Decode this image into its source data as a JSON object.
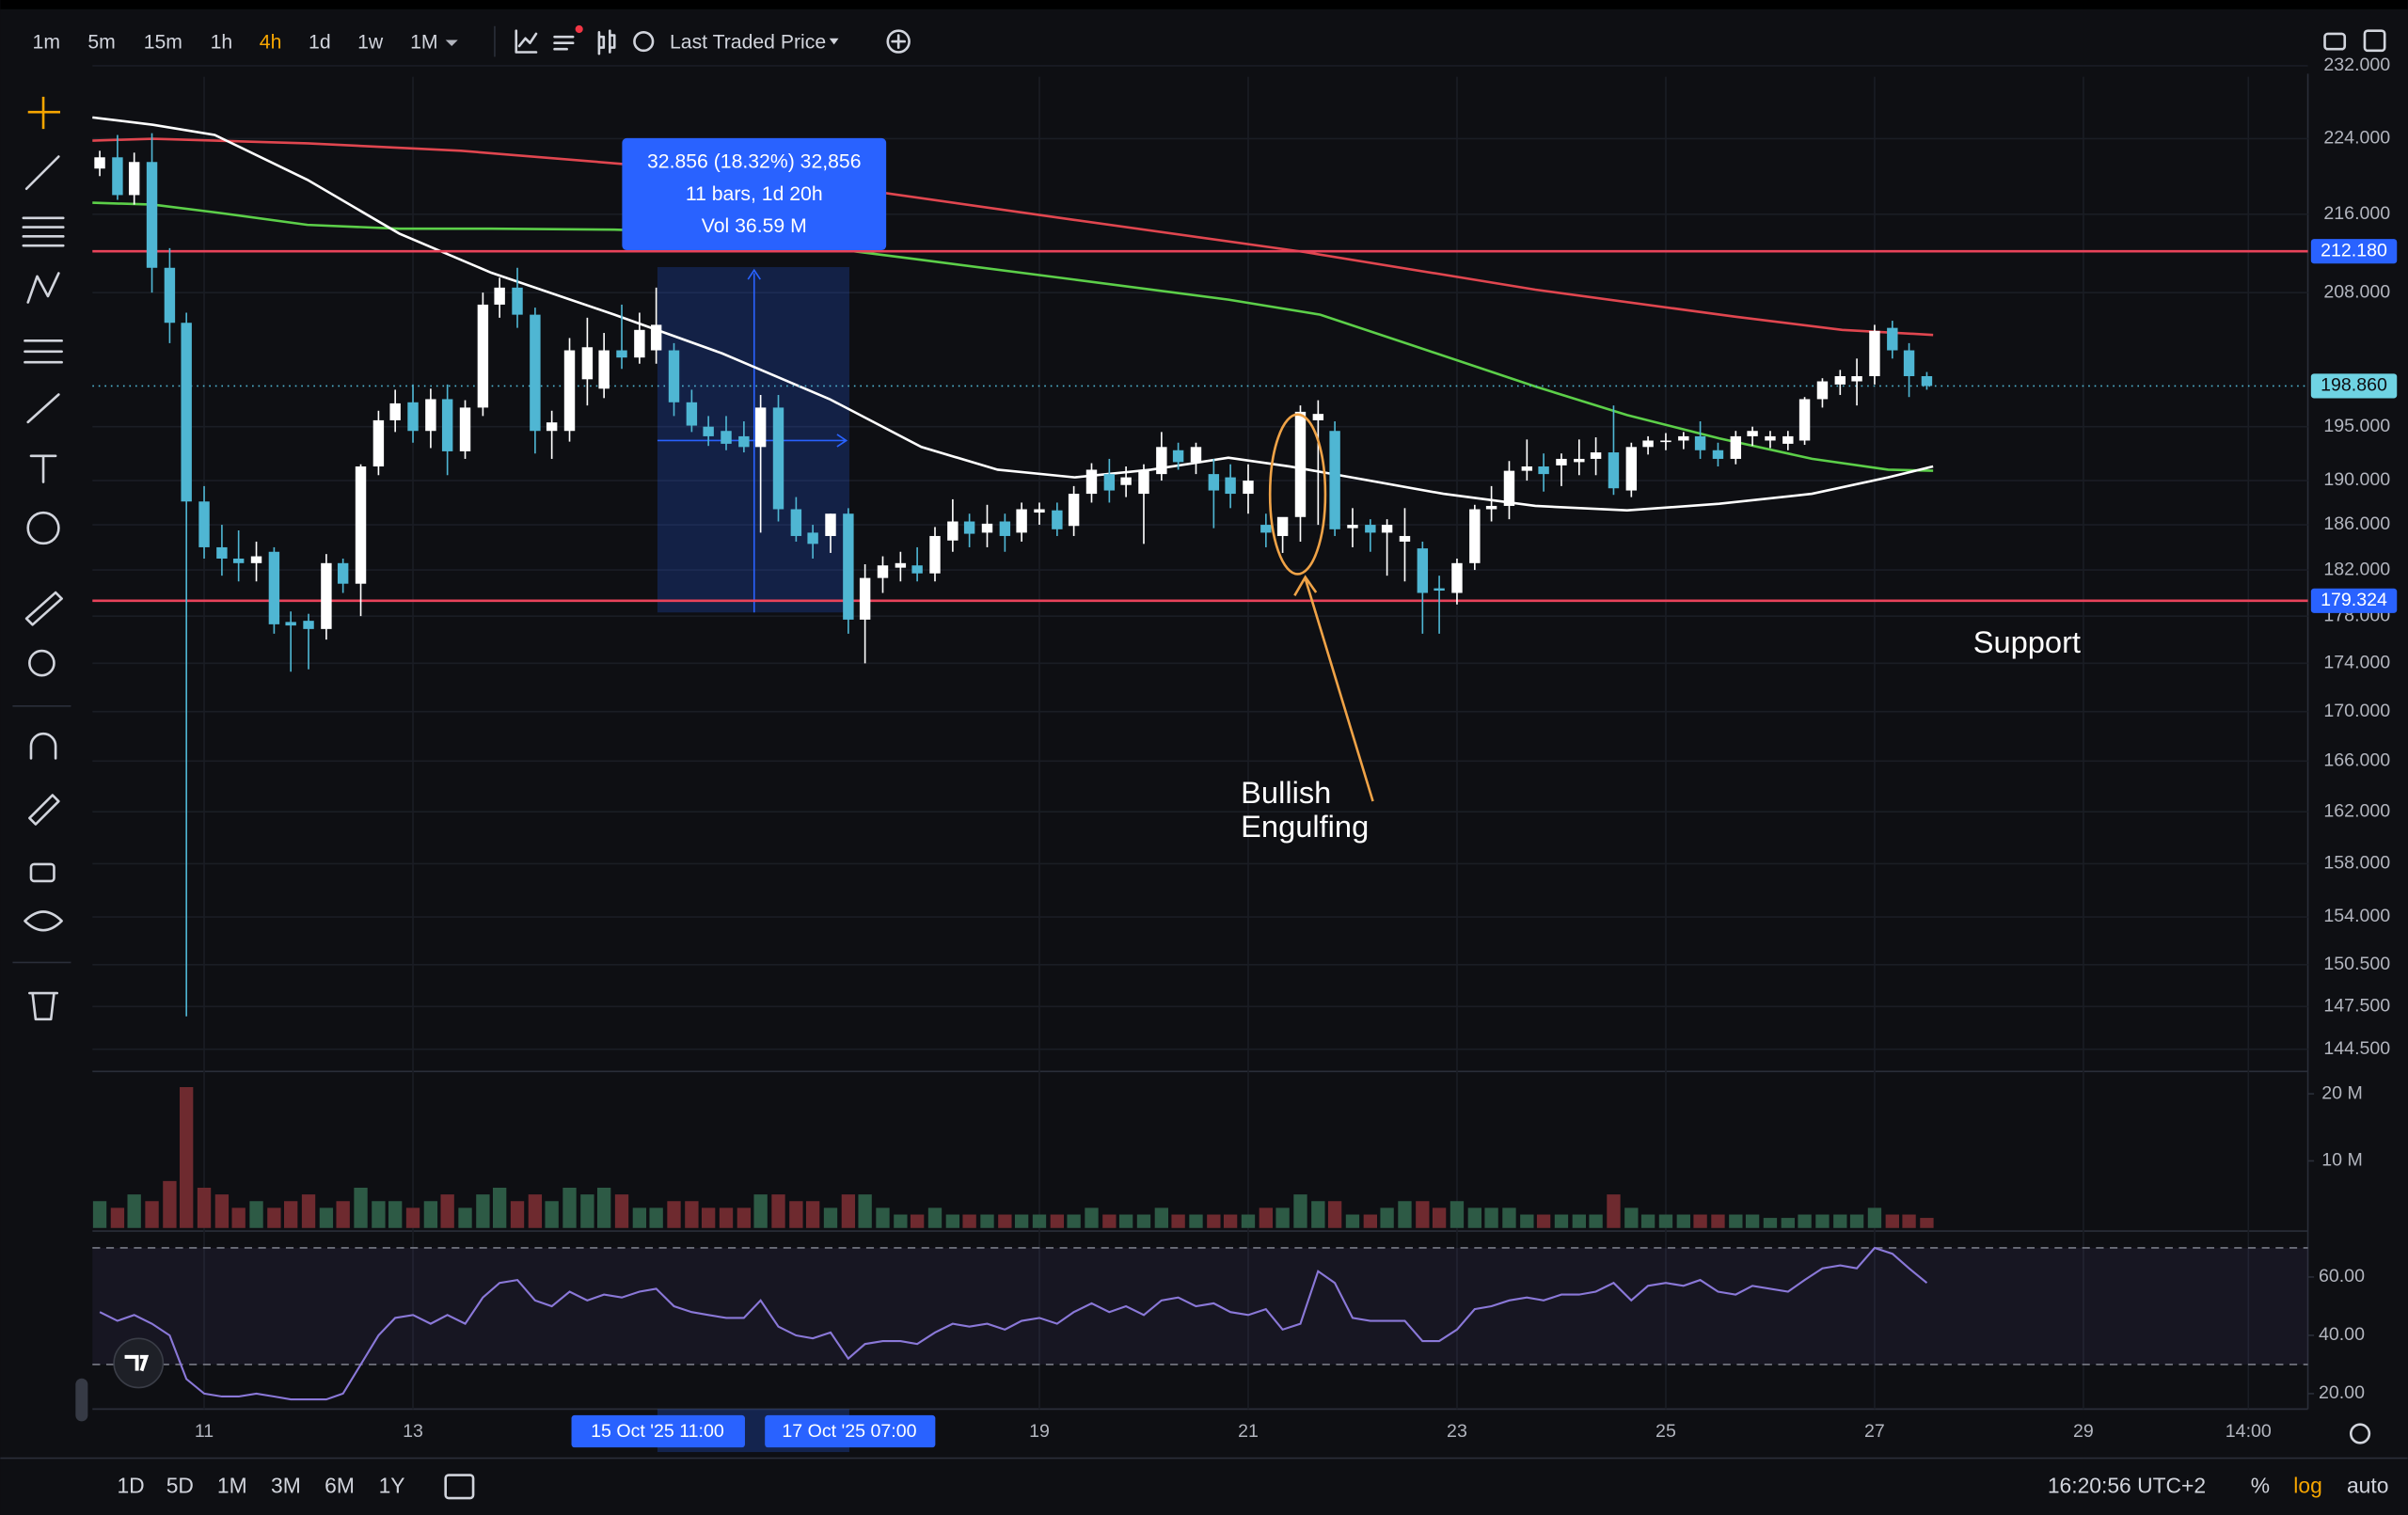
{
  "toolbar": {
    "timeframes": [
      "1m",
      "5m",
      "15m",
      "1h",
      "4h",
      "1d",
      "1w",
      "1M"
    ],
    "active_timeframe": "4h",
    "price_source": "Last Traded Price"
  },
  "chart_data": {
    "type": "candlestick",
    "log_scale": true,
    "grid": true,
    "up_color": "#ffffff",
    "down_color": "#4fb6d3",
    "xlim": [
      9.93,
      31.15
    ],
    "xticks": [
      11,
      13,
      19,
      21,
      23,
      25,
      27,
      29,
      {
        "value": 30.58,
        "label": "14:00"
      }
    ],
    "ylim": [
      143.07,
      230.78
    ],
    "yticks": [
      {
        "value": 232,
        "label": "232.000"
      },
      {
        "value": 224,
        "label": "224.000"
      },
      {
        "value": 216,
        "label": "216.000"
      },
      {
        "value": 208,
        "label": "208.000"
      },
      {
        "value": 195,
        "label": "195.000"
      },
      {
        "value": 190,
        "label": "190.000"
      },
      {
        "value": 186,
        "label": "186.000"
      },
      {
        "value": 182,
        "label": "182.000"
      },
      {
        "value": 178,
        "label": "178.000"
      },
      {
        "value": 174,
        "label": "174.000"
      },
      {
        "value": 170,
        "label": "170.000"
      },
      {
        "value": 166,
        "label": "166.000"
      },
      {
        "value": 162,
        "label": "162.000"
      },
      {
        "value": 158,
        "label": "158.000"
      },
      {
        "value": 154,
        "label": "154.000"
      },
      {
        "value": 150.5,
        "label": "150.500"
      },
      {
        "value": 147.5,
        "label": "147.500"
      },
      {
        "value": 144.5,
        "label": "144.500"
      }
    ],
    "x": [
      10,
      10.17,
      10.33,
      10.5,
      10.67,
      10.83,
      11,
      11.17,
      11.33,
      11.5,
      11.67,
      11.83,
      12,
      12.17,
      12.33,
      12.5,
      12.67,
      12.83,
      13,
      13.17,
      13.33,
      13.5,
      13.67,
      13.83,
      14,
      14.17,
      14.33,
      14.5,
      14.67,
      14.83,
      15,
      15.17,
      15.33,
      15.5,
      15.67,
      15.83,
      16,
      16.17,
      16.33,
      16.5,
      16.67,
      16.83,
      17,
      17.17,
      17.33,
      17.5,
      17.67,
      17.83,
      18,
      18.17,
      18.33,
      18.5,
      18.67,
      18.83,
      19,
      19.17,
      19.33,
      19.5,
      19.67,
      19.83,
      20,
      20.17,
      20.33,
      20.5,
      20.67,
      20.83,
      21,
      21.17,
      21.33,
      21.5,
      21.67,
      21.83,
      22,
      22.17,
      22.33,
      22.5,
      22.67,
      22.83,
      23,
      23.17,
      23.33,
      23.5,
      23.67,
      23.83,
      24,
      24.17,
      24.33,
      24.5,
      24.67,
      24.83,
      25,
      25.17,
      25.33,
      25.5,
      25.67,
      25.83,
      26,
      26.17,
      26.33,
      26.5,
      26.67,
      26.83,
      27,
      27.17,
      27.33,
      27.5
    ],
    "open": [
      220.8,
      222,
      218,
      221.5,
      210.5,
      205,
      188.1,
      184,
      183,
      182.6,
      183.6,
      177.5,
      177.6,
      176.9,
      182.6,
      180.8,
      191.3,
      195.6,
      197.3,
      194.6,
      197.6,
      192.7,
      196.8,
      206.8,
      208.5,
      205.8,
      194.6,
      194.6,
      199.5,
      198.6,
      202.3,
      201.6,
      202.3,
      202.3,
      197.3,
      195,
      194.6,
      194.1,
      193.1,
      196.8,
      187.4,
      185.3,
      185,
      187,
      177.7,
      181.3,
      182.2,
      182.4,
      181.7,
      184.6,
      186.3,
      185.3,
      186.3,
      185.3,
      187.1,
      187.3,
      185.9,
      188.8,
      190.6,
      189.6,
      188.8,
      190.6,
      192.8,
      191.7,
      190.6,
      190.3,
      188.8,
      186,
      185,
      186.7,
      195.6,
      194.6,
      185.7,
      186,
      185.3,
      184.5,
      183.9,
      180.4,
      180,
      182.6,
      187.4,
      187.7,
      190.9,
      191.3,
      191.4,
      191.7,
      192,
      192.6,
      189.1,
      193.1,
      193.6,
      193.7,
      194.1,
      192.8,
      192,
      194.1,
      193.7,
      193.4,
      193.7,
      197.6,
      199,
      199.3,
      199.8,
      204.5,
      202.3,
      199.8
    ],
    "high": [
      222.7,
      224.4,
      222.5,
      224.6,
      212.5,
      206,
      189.5,
      186,
      185.5,
      184.5,
      184,
      178.4,
      178.2,
      183.4,
      183,
      191.5,
      196.5,
      198.5,
      199,
      198.6,
      199,
      197.5,
      208,
      209.5,
      210.5,
      206.5,
      196.5,
      203.5,
      205.5,
      204,
      206.8,
      206,
      208.5,
      203,
      198.5,
      196,
      196,
      195.5,
      198,
      198,
      188.5,
      186,
      187,
      187.5,
      182.5,
      183.2,
      183.6,
      184,
      185.8,
      188.3,
      187,
      187.8,
      187,
      188,
      188,
      188,
      189.5,
      191.6,
      192,
      191.3,
      191.5,
      194.5,
      193.5,
      193.5,
      192,
      191.5,
      191.5,
      187,
      186,
      197,
      197.5,
      195.5,
      187.5,
      186.5,
      186.5,
      187.5,
      184.5,
      181.5,
      183,
      187.8,
      189.5,
      191.8,
      193.8,
      192.5,
      192.5,
      193.8,
      194,
      197,
      193.5,
      194.1,
      194.4,
      194.5,
      195.5,
      193.5,
      194.6,
      195,
      194.6,
      194.6,
      197.8,
      199.6,
      200.4,
      201.5,
      204.8,
      205.2,
      203,
      200.2
    ],
    "low": [
      220,
      217.5,
      217,
      208,
      203,
      146.8,
      183,
      181.5,
      181,
      181,
      176.5,
      173.3,
      173.5,
      176,
      180,
      178,
      190.5,
      194.5,
      193.5,
      193,
      190.5,
      192,
      196,
      205.5,
      204.5,
      192.5,
      192,
      193.6,
      197,
      197.7,
      200.5,
      201,
      201,
      196,
      194.5,
      193.2,
      192.8,
      192.6,
      185.3,
      186.3,
      184.5,
      183,
      183.5,
      176.5,
      174,
      180,
      181,
      181,
      181,
      183.6,
      184,
      184,
      183.6,
      184.5,
      186,
      185,
      185,
      188,
      188,
      188.5,
      184.3,
      190,
      191,
      190.6,
      185.7,
      187.5,
      187,
      184,
      183.5,
      184.5,
      186,
      185,
      184,
      183.6,
      181.5,
      181,
      176.5,
      176.5,
      179,
      182,
      186.3,
      186.5,
      190,
      189,
      189.5,
      190.5,
      190.5,
      188.7,
      188.5,
      192.4,
      192.8,
      192.9,
      192,
      191.3,
      191.5,
      193.2,
      193,
      192.8,
      193.3,
      196.8,
      198,
      197,
      199,
      201.5,
      197.8,
      198.5
    ],
    "close": [
      222,
      218,
      221.5,
      210.5,
      205,
      188.1,
      184,
      183,
      182.6,
      183.2,
      177.3,
      177.2,
      176.9,
      182.6,
      180.8,
      191.3,
      195.6,
      197.2,
      194.6,
      197.6,
      192.7,
      196.8,
      206.8,
      208.5,
      205.8,
      194.6,
      195.4,
      202.3,
      202.6,
      202.3,
      201.6,
      204.3,
      204.8,
      197.3,
      195.1,
      194.1,
      193.4,
      193.1,
      196.8,
      187.4,
      185,
      184.3,
      187,
      177.7,
      181.3,
      182.4,
      182.6,
      181.7,
      185,
      186.3,
      185.2,
      186.1,
      185,
      187.4,
      187.4,
      185.6,
      188.8,
      191,
      189.1,
      190.3,
      191,
      193.1,
      191.7,
      193.1,
      189.1,
      188.8,
      190,
      185.3,
      186.7,
      196.4,
      196.2,
      185.6,
      186,
      185.3,
      186,
      185,
      180,
      180.2,
      182.6,
      187.4,
      187.7,
      190.9,
      191.3,
      190.6,
      192,
      192,
      192.6,
      189.3,
      193.1,
      193.7,
      193.7,
      194.1,
      192.8,
      192,
      194.1,
      194.6,
      194.1,
      194.1,
      197.6,
      199.3,
      199.8,
      199.8,
      204.2,
      202.3,
      199.8,
      198.86
    ],
    "moving_averages": [
      {
        "color": "#e0464f",
        "x": [
          9.93,
          10.51,
          11.99,
          13.46,
          15.22,
          17.28,
          19.34,
          21.54,
          23.75,
          25.66,
          26.69,
          27.56
        ],
        "values": [
          223.8,
          224,
          223.5,
          222.7,
          221.1,
          218.6,
          215.4,
          212.1,
          208.3,
          205.6,
          204.3,
          203.8
        ]
      },
      {
        "color": "#5ccf49",
        "x": [
          9.93,
          10.51,
          11.1,
          11.99,
          12.87,
          13.75,
          14.93,
          15.51,
          16.69,
          17.87,
          19.34,
          20.81,
          21.69,
          22.57,
          23.75,
          24.63,
          25.51,
          26.4,
          27.13,
          27.56
        ],
        "values": [
          217.2,
          217,
          216.2,
          214.9,
          214.5,
          214.5,
          214.4,
          214.2,
          212.9,
          211.3,
          209.3,
          207.3,
          205.8,
          202.8,
          198.8,
          196.1,
          193.9,
          192,
          191,
          190.9
        ]
      },
      {
        "color": "#ffffff",
        "x": [
          9.93,
          10.51,
          11.1,
          11.99,
          12.87,
          13.75,
          14.93,
          15.96,
          16.99,
          17.87,
          18.6,
          19.34,
          20.07,
          20.81,
          21.4,
          21.99,
          22.87,
          23.75,
          24.63,
          25.51,
          26.4,
          27.13,
          27.56
        ],
        "values": [
          226.3,
          225.5,
          224.4,
          219.6,
          214,
          210,
          205.8,
          202,
          197.6,
          193.1,
          191,
          190.3,
          191,
          192.1,
          191.3,
          190.3,
          188.8,
          187.7,
          187.3,
          187.9,
          188.8,
          190.3,
          191.3
        ]
      }
    ],
    "levels": [
      {
        "value": 212.18,
        "label": "212.180",
        "color": "#e8435a"
      },
      {
        "value": 179.324,
        "label": "179.324",
        "color": "#e8435a"
      }
    ],
    "last_price": {
      "value": 198.86,
      "label": "198.860"
    },
    "measure": {
      "lines": [
        "32.856 (18.32%) 32,856",
        "11 bars, 1d 20h",
        "Vol 36.59 M"
      ],
      "start_label": "15 Oct '25  11:00",
      "end_label": "17 Oct '25  07:00"
    },
    "annotations": {
      "pattern": [
        "Bullish",
        "Engulfing"
      ],
      "level": "Support"
    },
    "volume": {
      "ylim": [
        0,
        22.2
      ],
      "yticks": [
        {
          "value": 20,
          "label": "20 M"
        },
        {
          "value": 10,
          "label": "10 M"
        }
      ],
      "up_color": "#2d5a45",
      "down_color": "#6e2a2f",
      "values": [
        4,
        3,
        5,
        4,
        7,
        21,
        6,
        5,
        3,
        4,
        3,
        4,
        5,
        3,
        4,
        6,
        4,
        4,
        3,
        4,
        5,
        3,
        5,
        6,
        4,
        5,
        4,
        6,
        5,
        6,
        5,
        3,
        3,
        4,
        4,
        3,
        3,
        3,
        5,
        5,
        4,
        4,
        3,
        5,
        5,
        3,
        2,
        2,
        3,
        2,
        2,
        2,
        2,
        2,
        2,
        2,
        2,
        3,
        2,
        2,
        2,
        3,
        2,
        2,
        2,
        2,
        2,
        3,
        3,
        5,
        4,
        4,
        2,
        2,
        3,
        4,
        4,
        3,
        4,
        3,
        3,
        3,
        2,
        2,
        2,
        2,
        2,
        5,
        3,
        2,
        2,
        2,
        2,
        2,
        2,
        2,
        1.5,
        1.5,
        2,
        2,
        2,
        2,
        3,
        2,
        2,
        1.5
      ]
    },
    "rsi": {
      "ylim": [
        14.7,
        74.2
      ],
      "yticks": [
        {
          "value": 60,
          "label": "60.00"
        },
        {
          "value": 40,
          "label": "40.00"
        },
        {
          "value": 20,
          "label": "20.00"
        }
      ],
      "bands": [
        30,
        70
      ],
      "color": "#8a78d8",
      "values": [
        48,
        45,
        47,
        44,
        40,
        25,
        20,
        19,
        19,
        20,
        19,
        18,
        18,
        18,
        20,
        30,
        40,
        46,
        47,
        44,
        47,
        44,
        53,
        58,
        59,
        52,
        50,
        55,
        52,
        54,
        53,
        55,
        56,
        50,
        48,
        47,
        46,
        46,
        52,
        43,
        40,
        39,
        41,
        32,
        37,
        38,
        38,
        37,
        41,
        44,
        43,
        44,
        42,
        45,
        46,
        44,
        48,
        51,
        48,
        50,
        47,
        52,
        53,
        50,
        51,
        48,
        47,
        49,
        42,
        44,
        62,
        58,
        46,
        45,
        45,
        45,
        38,
        38,
        42,
        49,
        50,
        52,
        53,
        52,
        54,
        54,
        55,
        58,
        52,
        57,
        58,
        57,
        59,
        55,
        54,
        57,
        56,
        55,
        59,
        63,
        64,
        63,
        70,
        68,
        63,
        58
      ]
    }
  },
  "range_bar": {
    "ranges": [
      "1D",
      "5D",
      "1M",
      "3M",
      "6M",
      "1Y"
    ],
    "clock": "16:20:56 UTC+2",
    "options": [
      "%",
      "log",
      "auto"
    ],
    "active_option": "log"
  }
}
